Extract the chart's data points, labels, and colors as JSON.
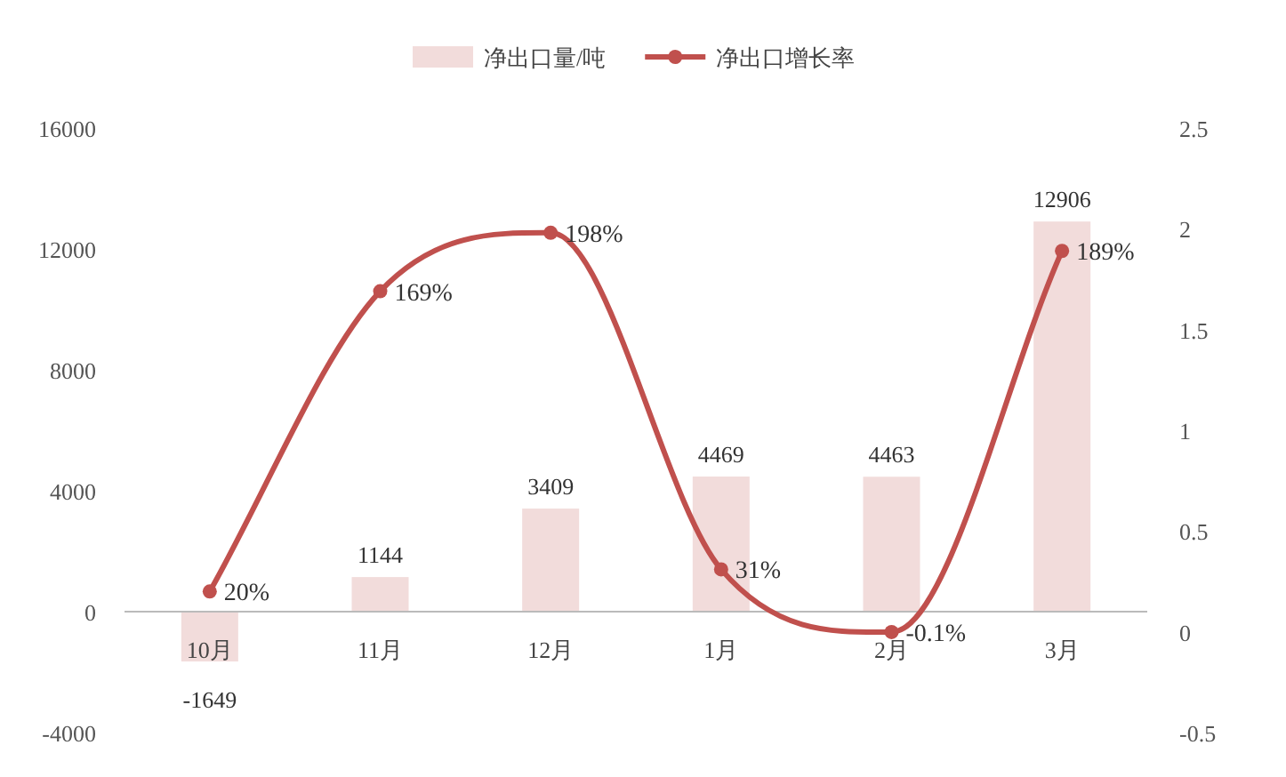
{
  "chart_data": {
    "type": "bar",
    "categories": [
      "10月",
      "11月",
      "12月",
      "1月",
      "2月",
      "3月"
    ],
    "series": [
      {
        "name": "净出口量/吨",
        "type": "bar",
        "color": "#f2dcdb",
        "values": [
          -1649,
          1144,
          3409,
          4469,
          4463,
          12906
        ]
      },
      {
        "name": "净出口增长率",
        "type": "line",
        "axis": "y2",
        "color": "#c0504d",
        "values": [
          0.2,
          1.69,
          1.98,
          0.31,
          -0.001,
          1.89
        ],
        "value_labels": [
          "20%",
          "169%",
          "198%",
          "31%",
          "-0.1%",
          "189%"
        ]
      }
    ],
    "ylim": [
      -4000,
      16000
    ],
    "yticks": [
      -4000,
      0,
      4000,
      8000,
      12000,
      16000
    ],
    "y2lim": [
      -0.5,
      2.5
    ],
    "y2ticks": [
      -0.5,
      0,
      0.5,
      1,
      1.5,
      2,
      2.5
    ],
    "data_labels": true,
    "legend": "top",
    "marker": "circle",
    "grid": false
  }
}
